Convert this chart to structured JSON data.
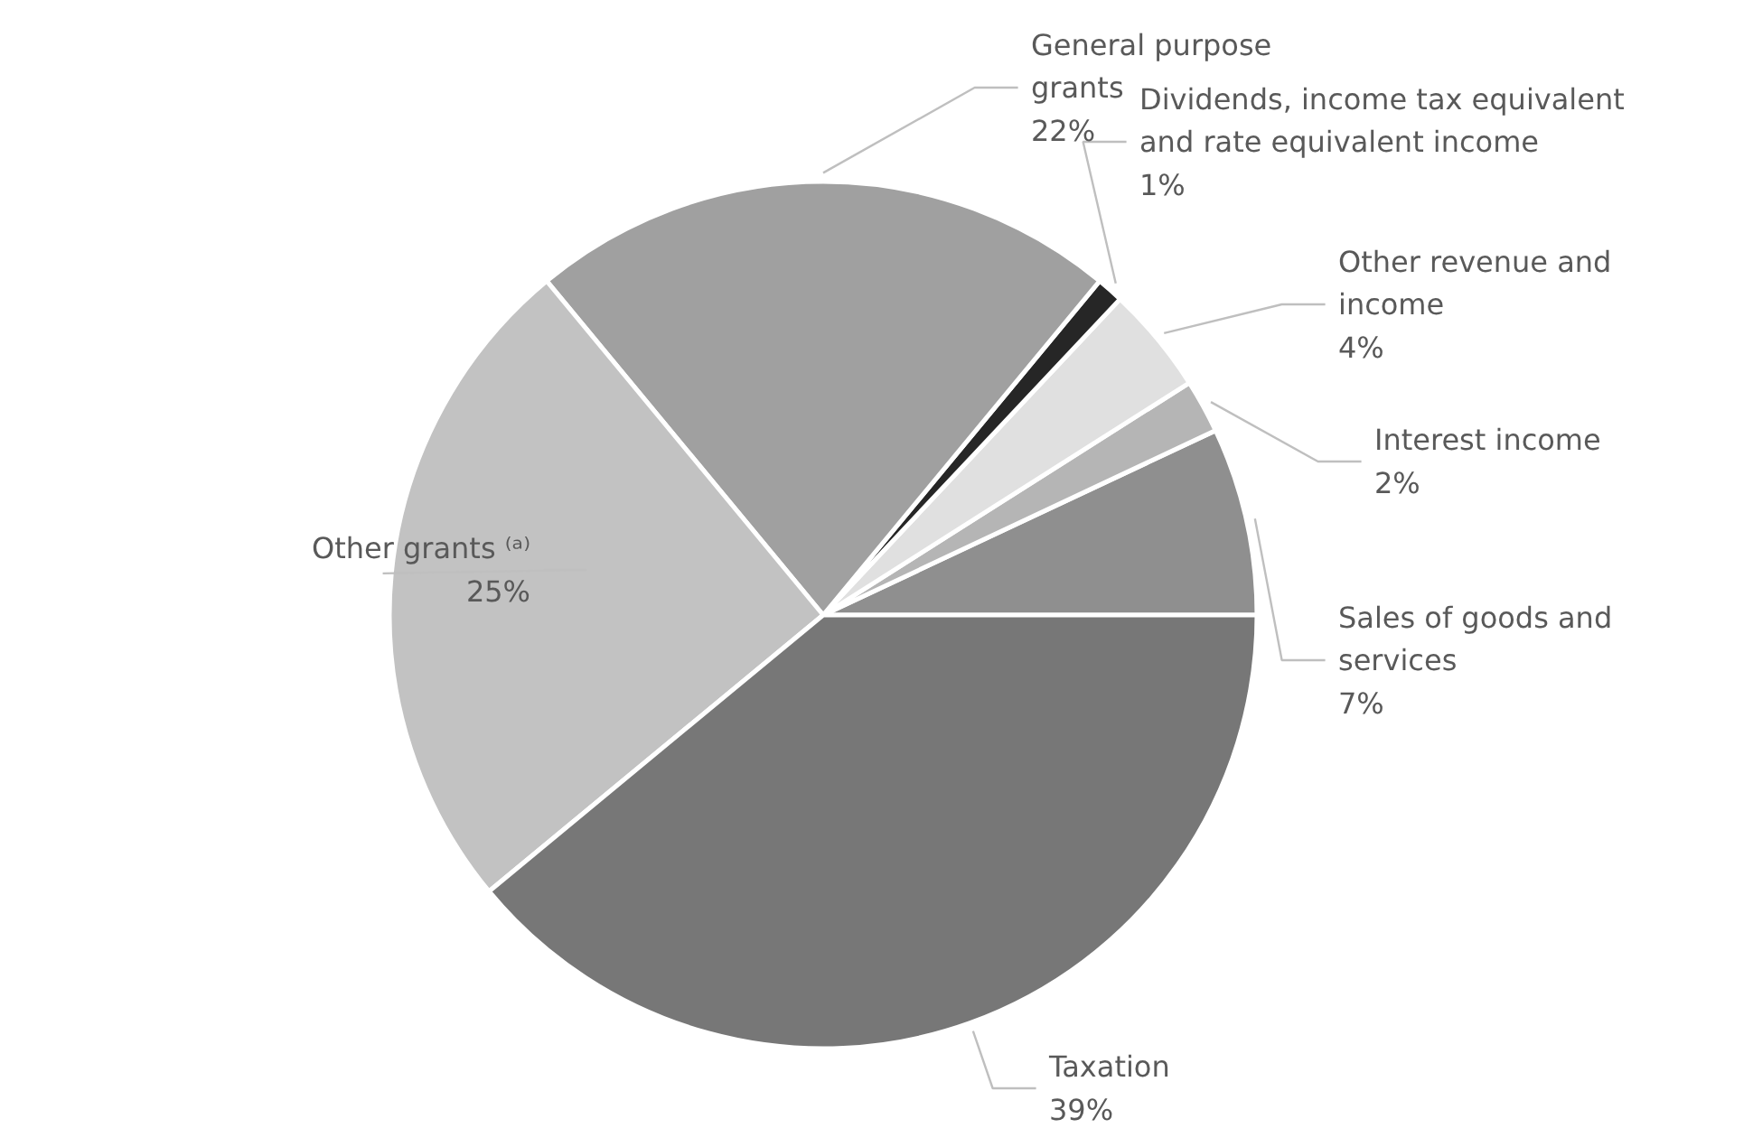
{
  "chart_data": {
    "type": "pie",
    "categories": [
      "Sales of goods and services",
      "Interest income",
      "Other revenue and income",
      "Dividends, income tax equivalent and rate equivalent income",
      "General purpose grants",
      "Other grants ⁽ᵃ⁾",
      "Taxation"
    ],
    "values": [
      7,
      2,
      4,
      1,
      22,
      25,
      39
    ],
    "value_labels": [
      "7%",
      "2%",
      "4%",
      "1%",
      "22%",
      "25%",
      "39%"
    ],
    "colors": [
      "#8f8f8f",
      "#b5b5b5",
      "#e0e0e0",
      "#262626",
      "#a0a0a0",
      "#c2c2c2",
      "#777777"
    ]
  }
}
